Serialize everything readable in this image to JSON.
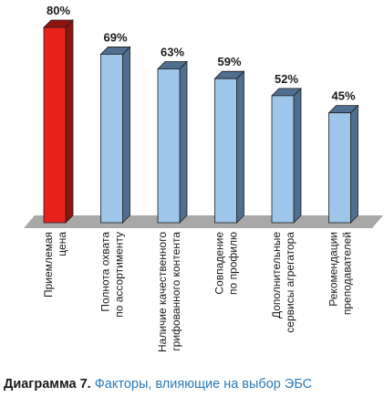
{
  "chart_data": {
    "type": "bar",
    "categories": [
      [
        "Приемлемая",
        "цена"
      ],
      [
        "Полнота охвата",
        "по ассортименту"
      ],
      [
        "Наличие качественного",
        "грифованного контента"
      ],
      [
        "Совпадение",
        "по профилю"
      ],
      [
        "Дополнительные",
        "сервисы агрегатора"
      ],
      [
        "Рекомендации",
        "преподавателей"
      ]
    ],
    "values": [
      80,
      69,
      63,
      59,
      52,
      45
    ],
    "value_labels": [
      "80%",
      "69%",
      "63%",
      "59%",
      "52%",
      "45%"
    ],
    "ylim": [
      0,
      80
    ],
    "grid": false,
    "legend": "none",
    "style": "3d-bars",
    "colors": {
      "highlight": "#e8211c",
      "highlight_side": "#8e1411",
      "bar": "#9dc6ea",
      "bar_side": "#506f90",
      "floor": "#a8a8a8"
    },
    "highlight_index": 0
  },
  "caption": {
    "lead": "Диаграмма 7.",
    "rest": "Факторы, влияющие на выбор ЭБС"
  }
}
